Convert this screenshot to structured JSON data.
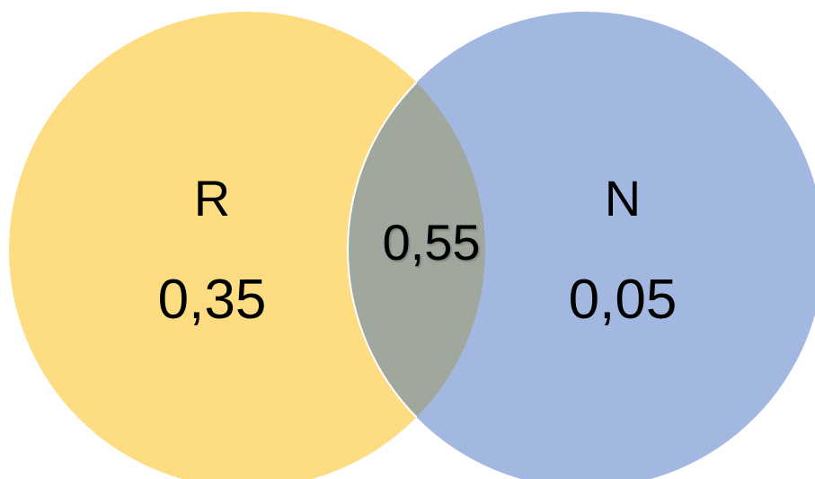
{
  "diagram": {
    "type": "venn",
    "sets": [
      {
        "label": "R",
        "value": "0,35",
        "color": "#FEDC82"
      },
      {
        "label": "N",
        "value": "0,05",
        "color": "#A2B8E1"
      }
    ],
    "intersection": {
      "value": "0,55",
      "color": "#A0A79D",
      "outline_color": "#FFFFFF"
    }
  }
}
